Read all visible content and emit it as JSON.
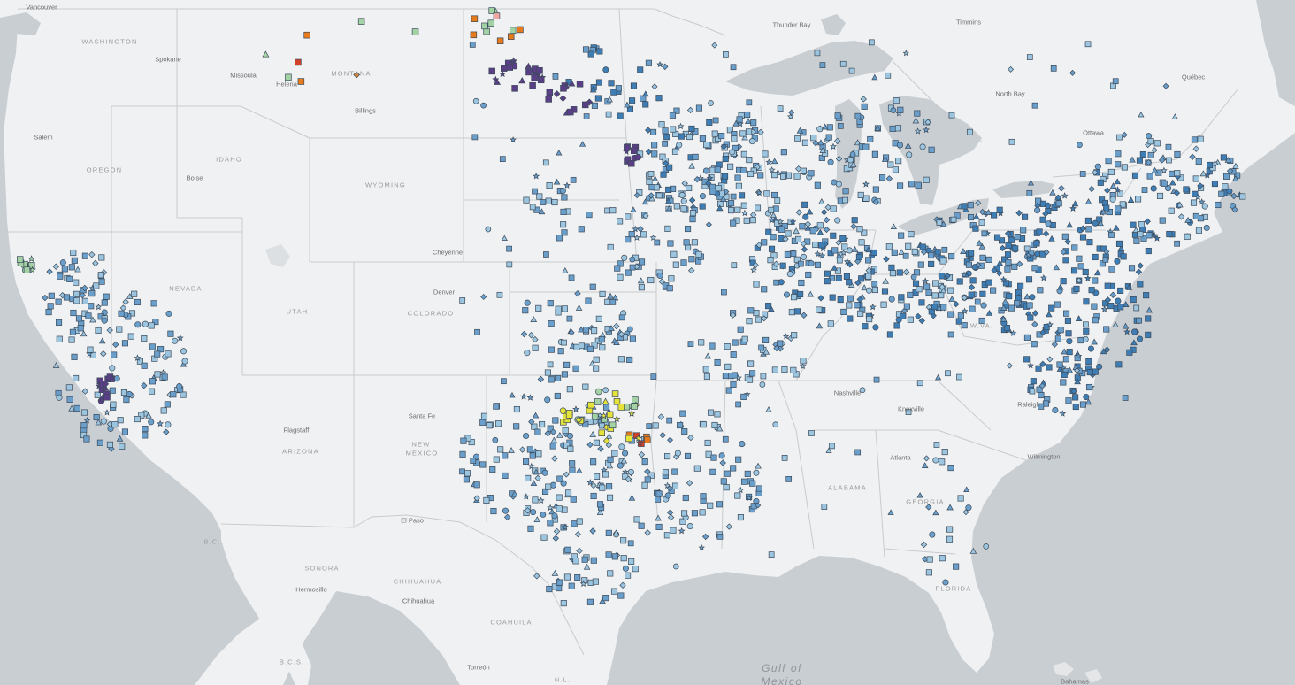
{
  "map": {
    "colors": {
      "water": "#c9ced3",
      "land": "#f0f1f2",
      "border": "#c4c7ca",
      "marker_stroke": "#3b4a5a",
      "light_blue": "#9cc5e0",
      "mid_blue": "#6a9fcc",
      "dark_blue": "#3f7db5",
      "purple": "#5b3f86",
      "green": "#a3d2a4",
      "yellow": "#e5e23a",
      "orange": "#e77b1c",
      "red": "#d4412a",
      "pink": "#f0a7a0"
    },
    "labels": {
      "states": [
        {
          "id": "washington",
          "text": "WASHINGTON"
        },
        {
          "id": "oregon",
          "text": "OREGON"
        },
        {
          "id": "idaho",
          "text": "IDAHO"
        },
        {
          "id": "montana",
          "text": "MONTANA"
        },
        {
          "id": "wyoming",
          "text": "WYOMING"
        },
        {
          "id": "nevada",
          "text": "NEVADA"
        },
        {
          "id": "utah",
          "text": "UTAH"
        },
        {
          "id": "colorado",
          "text": "COLORADO"
        },
        {
          "id": "arizona",
          "text": "ARIZONA"
        },
        {
          "id": "new-mexico-1",
          "text": "NEW"
        },
        {
          "id": "new-mexico-2",
          "text": "MEXICO"
        },
        {
          "id": "alabama",
          "text": "ALABAMA"
        },
        {
          "id": "georgia",
          "text": "GEORGIA"
        },
        {
          "id": "florida",
          "text": "FLORIDA"
        },
        {
          "id": "wva",
          "text": "W.VA."
        }
      ],
      "provinces": [
        {
          "id": "sonora",
          "text": "SONORA"
        },
        {
          "id": "chihuahua-state",
          "text": "CHIHUAHUA"
        },
        {
          "id": "coahuila",
          "text": "COAHUILA"
        },
        {
          "id": "bc",
          "text": "B.C."
        },
        {
          "id": "bcs",
          "text": "B.C.S."
        },
        {
          "id": "nl",
          "text": "N.L."
        }
      ],
      "cities": [
        {
          "id": "vancouver",
          "text": "Vancouver"
        },
        {
          "id": "spokane",
          "text": "Spokane"
        },
        {
          "id": "missoula",
          "text": "Missoula"
        },
        {
          "id": "helena",
          "text": "Helena"
        },
        {
          "id": "billings",
          "text": "Billings"
        },
        {
          "id": "salem",
          "text": "Salem"
        },
        {
          "id": "boise",
          "text": "Boise"
        },
        {
          "id": "cheyenne",
          "text": "Cheyenne"
        },
        {
          "id": "denver",
          "text": "Denver"
        },
        {
          "id": "flagstaff",
          "text": "Flagstaff"
        },
        {
          "id": "santa-fe",
          "text": "Santa Fe"
        },
        {
          "id": "el-paso",
          "text": "El Paso"
        },
        {
          "id": "hermosillo",
          "text": "Hermosillo"
        },
        {
          "id": "chihuahua",
          "text": "Chihuahua"
        },
        {
          "id": "torreon",
          "text": "Torreón"
        },
        {
          "id": "thunder-bay",
          "text": "Thunder Bay"
        },
        {
          "id": "timmins",
          "text": "Timmins"
        },
        {
          "id": "north-bay",
          "text": "North Bay"
        },
        {
          "id": "ottawa",
          "text": "Ottawa"
        },
        {
          "id": "quebec",
          "text": "Québec"
        },
        {
          "id": "nashville",
          "text": "Nashville"
        },
        {
          "id": "knoxville",
          "text": "Knoxville"
        },
        {
          "id": "raleigh",
          "text": "Raleigh"
        },
        {
          "id": "atlanta",
          "text": "Atlanta"
        },
        {
          "id": "wilmington",
          "text": "Wilmington"
        },
        {
          "id": "bahamas",
          "text": "Bahamas"
        }
      ],
      "water": [
        {
          "id": "gulf-1",
          "text": "Gulf of"
        },
        {
          "id": "gulf-2",
          "text": "Mexico"
        }
      ]
    }
  }
}
